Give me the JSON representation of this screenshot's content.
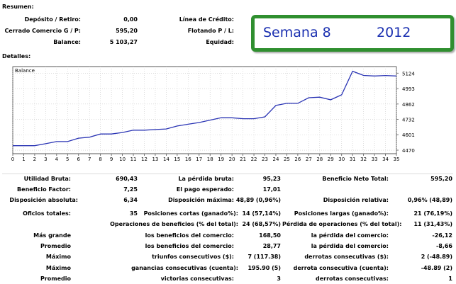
{
  "header": {
    "resumen": "Resumen:",
    "detalles": "Detalles:",
    "deposito_label": "Depósito / Retiro:",
    "deposito_value": "0,00",
    "cerrado_label": "Cerrado Comercio G / P:",
    "cerrado_value": "595,20",
    "balance_label": "Balance:",
    "balance_value": "5 103,27",
    "linea_label": "Línea de Crédito:",
    "flotando_label": "Flotando P / L:",
    "equidad_label": "Equidad:"
  },
  "banner": {
    "week": "Semana 8",
    "year": "2012",
    "border_color": "#2f8f2f",
    "text_color": "#1a2fb0"
  },
  "chart_data": {
    "type": "line",
    "legend": "Balance",
    "x": [
      0,
      1,
      2,
      3,
      4,
      5,
      6,
      7,
      8,
      9,
      10,
      11,
      12,
      13,
      14,
      15,
      16,
      17,
      18,
      19,
      20,
      21,
      22,
      23,
      24,
      25,
      26,
      27,
      28,
      29,
      30,
      31,
      32,
      33,
      34,
      35
    ],
    "values": [
      4508,
      4508,
      4508,
      4525,
      4543,
      4543,
      4572,
      4580,
      4607,
      4607,
      4620,
      4640,
      4640,
      4645,
      4650,
      4675,
      4690,
      4705,
      4725,
      4745,
      4745,
      4737,
      4737,
      4753,
      4850,
      4868,
      4868,
      4915,
      4920,
      4898,
      4940,
      5140,
      5105,
      5100,
      5104,
      5100
    ],
    "ylim": [
      4440,
      5180
    ],
    "xlim": [
      0,
      35
    ],
    "yticks": [
      4470,
      4601,
      4732,
      4862,
      4993,
      5124
    ],
    "xticks": [
      0,
      1,
      2,
      3,
      4,
      5,
      6,
      7,
      8,
      9,
      10,
      11,
      12,
      13,
      14,
      15,
      16,
      17,
      18,
      19,
      20,
      21,
      22,
      23,
      24,
      25,
      26,
      27,
      28,
      29,
      30,
      31,
      32,
      33,
      34,
      35
    ],
    "line_color": "#2a34b4",
    "grid": true
  },
  "stats": {
    "utilidad_bruta_label": "Utilidad Bruta:",
    "utilidad_bruta_value": "690,43",
    "perdida_bruta_label": "La pérdida bruta:",
    "perdida_bruta_value": "95,23",
    "beneficio_neto_label": "Beneficio Neto Total:",
    "beneficio_neto_value": "595,20",
    "beneficio_factor_label": "Beneficio Factor:",
    "beneficio_factor_value": "7,25",
    "pago_esperado_label": "El pago esperado:",
    "pago_esperado_value": "17,01",
    "disp_absoluta_label": "Disposición absoluta:",
    "disp_absoluta_value": "6,34",
    "disp_maxima_label": "Disposición máxima:",
    "disp_maxima_value": "48,89 (0,96%)",
    "disp_relativa_label": "Disposición relativa:",
    "disp_relativa_value": "0,96% (48,89)",
    "oficios_label": "Oficios totales:",
    "oficios_value": "35",
    "pos_cortas_label": "Posiciones cortas (ganado%):",
    "pos_cortas_value": "14 (57,14%)",
    "pos_largas_label": "Posiciones largas (ganado%):",
    "pos_largas_value": "21 (76,19%)",
    "op_beneficios_label": "Operaciones de beneficios (% del total):",
    "op_beneficios_value": "24 (68,57%)",
    "perdida_op_label": "Pérdida de operaciones (% del total):",
    "perdida_op_value": "11 (31,43%)",
    "mas_grande_label": "Más grande",
    "benef_comercio_label1": "los beneficios del comercio:",
    "benef_comercio_value1": "168,50",
    "perdida_comercio_label1": "la pérdida del comercio:",
    "perdida_comercio_value1": "-26,12",
    "promedio_label1": "Promedio",
    "benef_comercio_label2": "los beneficios del comercio:",
    "benef_comercio_value2": "28,77",
    "perdida_comercio_label2": "la pérdida del comercio:",
    "perdida_comercio_value2": "-8,66",
    "maximo_label1": "Máximo",
    "triunfos_label": "triunfos consecutivos ($):",
    "triunfos_value": "7 (117.38)",
    "derrotas_label": "derrotas consecutivas ($):",
    "derrotas_value": "2 (-48.89)",
    "maximo_label2": "Máximo",
    "ganancias_label": "ganancias consecutivas (cuenta):",
    "ganancias_value": "195.90 (5)",
    "derrota_cuenta_label": "derrota consecutiva (cuenta):",
    "derrota_cuenta_value": "-48.89 (2)",
    "promedio_label2": "Promedio",
    "victorias_label": "victorias consecutivas:",
    "victorias_value": "3",
    "derrotas_cons_label": "derrotas consecutivas:",
    "derrotas_cons_value": "1"
  }
}
